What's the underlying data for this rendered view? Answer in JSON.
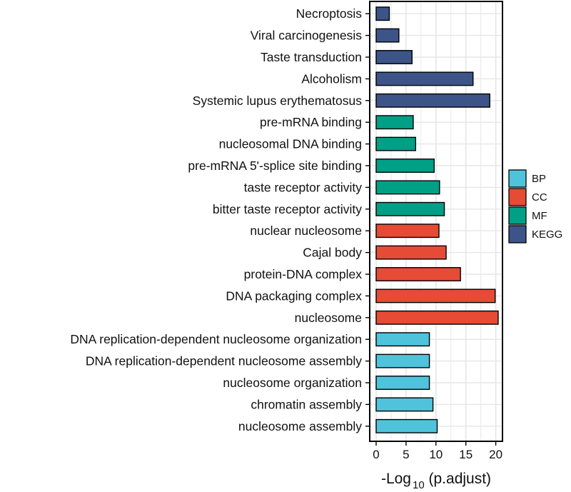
{
  "chart_data": {
    "type": "bar",
    "orientation": "horizontal",
    "xlabel_prefix": "-Log",
    "xlabel_subscript": "10",
    "xlabel_suffix": " (p.adjust)",
    "xlim": [
      0,
      21
    ],
    "xticks": [
      0,
      5,
      10,
      15,
      20
    ],
    "grid": true,
    "legend_position": "right",
    "legend": [
      {
        "name": "BP",
        "color": "#4fc3dc"
      },
      {
        "name": "CC",
        "color": "#e64b35"
      },
      {
        "name": "MF",
        "color": "#00a087"
      },
      {
        "name": "KEGG",
        "color": "#3c5488"
      }
    ],
    "categories": [
      "Necroptosis",
      "Viral carcinogenesis",
      "Taste transduction",
      "Alcoholism",
      "Systemic lupus erythematosus",
      "pre-mRNA binding",
      "nucleosomal DNA binding",
      "pre-mRNA 5'-splice site binding",
      "taste receptor activity",
      "bitter taste receptor activity",
      "nuclear nucleosome",
      "Cajal body",
      "protein-DNA complex",
      "DNA packaging complex",
      "nucleosome",
      "DNA replication-dependent nucleosome organization",
      "DNA replication-dependent nucleosome assembly",
      "nucleosome organization",
      "chromatin assembly",
      "nucleosome assembly"
    ],
    "groups": [
      "KEGG",
      "KEGG",
      "KEGG",
      "KEGG",
      "KEGG",
      "MF",
      "MF",
      "MF",
      "MF",
      "MF",
      "CC",
      "CC",
      "CC",
      "CC",
      "CC",
      "BP",
      "BP",
      "BP",
      "BP",
      "BP"
    ],
    "values": [
      2.2,
      3.8,
      6.0,
      16.2,
      19.0,
      6.2,
      6.6,
      9.7,
      10.6,
      11.4,
      10.5,
      11.7,
      14.1,
      19.9,
      20.4,
      8.9,
      8.9,
      8.9,
      9.5,
      10.2
    ]
  }
}
